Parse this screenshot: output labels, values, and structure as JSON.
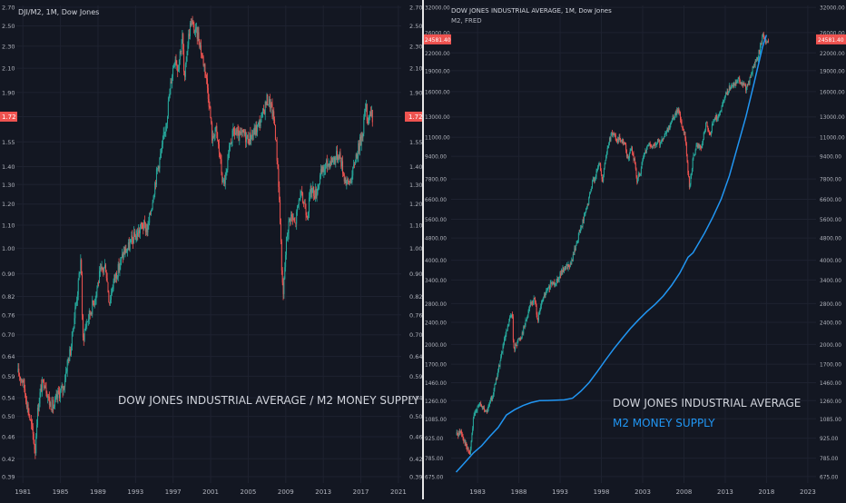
{
  "colors": {
    "background": "#131722",
    "grid": "#1e2230",
    "up": "#26a69a",
    "down": "#ef5350",
    "m2_line": "#2196f3",
    "text": "#b2b5be",
    "price_tag": "#ef5350"
  },
  "chart_data": [
    {
      "type": "candlestick",
      "header": "DJI/M2, 1M, Dow Jones",
      "annotation": "DOW JONES INDUSTRIAL AVERAGE / M2 MONEY SUPPLY",
      "scale": "log",
      "ylim": [
        0.38,
        2.72
      ],
      "y_ticks": [
        "0.39",
        "0.42",
        "0.46",
        "0.50",
        "0.54",
        "0.59",
        "0.64",
        "0.70",
        "0.76",
        "0.82",
        "0.90",
        "1.00",
        "1.10",
        "1.20",
        "1.30",
        "1.40",
        "1.55",
        "1.72",
        "1.90",
        "2.10",
        "2.30",
        "2.50",
        "2.70"
      ],
      "x_ticks": [
        "1981",
        "1985",
        "1989",
        "1993",
        "1997",
        "2001",
        "2005",
        "2009",
        "2013",
        "2017",
        "2021"
      ],
      "xlim": [
        1980.8,
        2021.8
      ],
      "last_value": "1.72",
      "series": [
        {
          "values": [
            [
              1980.9,
              0.6
            ],
            [
              1981.5,
              0.58
            ],
            [
              1982.0,
              0.52
            ],
            [
              1982.6,
              0.46
            ],
            [
              1982.8,
              0.43
            ],
            [
              1983.0,
              0.5
            ],
            [
              1983.4,
              0.56
            ],
            [
              1983.8,
              0.58
            ],
            [
              1984.3,
              0.53
            ],
            [
              1984.8,
              0.52
            ],
            [
              1985.3,
              0.55
            ],
            [
              1985.8,
              0.56
            ],
            [
              1986.2,
              0.62
            ],
            [
              1986.6,
              0.66
            ],
            [
              1987.0,
              0.76
            ],
            [
              1987.4,
              0.86
            ],
            [
              1987.7,
              0.97
            ],
            [
              1987.85,
              0.68
            ],
            [
              1988.2,
              0.73
            ],
            [
              1988.7,
              0.77
            ],
            [
              1989.2,
              0.82
            ],
            [
              1989.7,
              0.9
            ],
            [
              1990.3,
              0.93
            ],
            [
              1990.7,
              0.8
            ],
            [
              1991.2,
              0.88
            ],
            [
              1991.7,
              0.92
            ],
            [
              1992.2,
              0.98
            ],
            [
              1992.7,
              1.0
            ],
            [
              1993.2,
              1.04
            ],
            [
              1993.7,
              1.06
            ],
            [
              1994.2,
              1.1
            ],
            [
              1994.8,
              1.08
            ],
            [
              1995.3,
              1.22
            ],
            [
              1995.8,
              1.38
            ],
            [
              1996.3,
              1.5
            ],
            [
              1996.8,
              1.7
            ],
            [
              1997.3,
              2.0
            ],
            [
              1997.7,
              2.22
            ],
            [
              1998.0,
              2.1
            ],
            [
              1998.5,
              2.4
            ],
            [
              1998.7,
              1.95
            ],
            [
              1999.0,
              2.3
            ],
            [
              1999.4,
              2.55
            ],
            [
              1999.8,
              2.45
            ],
            [
              2000.2,
              2.4
            ],
            [
              2000.6,
              2.2
            ],
            [
              2000.9,
              2.1
            ],
            [
              2001.3,
              1.85
            ],
            [
              2001.7,
              1.55
            ],
            [
              2002.0,
              1.65
            ],
            [
              2002.5,
              1.45
            ],
            [
              2002.8,
              1.3
            ],
            [
              2003.2,
              1.35
            ],
            [
              2003.6,
              1.55
            ],
            [
              2004.0,
              1.62
            ],
            [
              2004.5,
              1.58
            ],
            [
              2005.0,
              1.6
            ],
            [
              2005.5,
              1.57
            ],
            [
              2006.0,
              1.6
            ],
            [
              2006.5,
              1.65
            ],
            [
              2007.0,
              1.72
            ],
            [
              2007.5,
              1.85
            ],
            [
              2007.9,
              1.8
            ],
            [
              2008.3,
              1.68
            ],
            [
              2008.7,
              1.35
            ],
            [
              2009.0,
              1.0
            ],
            [
              2009.2,
              0.8
            ],
            [
              2009.6,
              1.05
            ],
            [
              2010.0,
              1.15
            ],
            [
              2010.5,
              1.1
            ],
            [
              2011.0,
              1.25
            ],
            [
              2011.5,
              1.2
            ],
            [
              2011.8,
              1.15
            ],
            [
              2012.2,
              1.28
            ],
            [
              2012.7,
              1.25
            ],
            [
              2013.2,
              1.35
            ],
            [
              2013.7,
              1.4
            ],
            [
              2014.2,
              1.43
            ],
            [
              2014.7,
              1.45
            ],
            [
              2015.2,
              1.48
            ],
            [
              2015.7,
              1.35
            ],
            [
              2016.1,
              1.3
            ],
            [
              2016.6,
              1.35
            ],
            [
              2016.9,
              1.45
            ],
            [
              2017.3,
              1.52
            ],
            [
              2017.7,
              1.62
            ],
            [
              2018.0,
              1.8
            ],
            [
              2018.2,
              1.7
            ],
            [
              2018.5,
              1.75
            ],
            [
              2018.7,
              1.72
            ]
          ]
        }
      ]
    },
    {
      "type": "candlestick+line",
      "header": "DOW JONES INDUSTRIAL AVERAGE, 1M, Dow Jones",
      "subheader": "M2, FRED",
      "legend": [
        "DOW JONES INDUSTRIAL AVERAGE",
        "M2 MONEY SUPPLY"
      ],
      "scale": "log",
      "ylim": [
        640,
        32500
      ],
      "y_ticks": [
        "675.00",
        "785.00",
        "925.00",
        "1085.00",
        "1260.00",
        "1460.00",
        "1700.00",
        "2000.00",
        "2400.00",
        "2800.00",
        "3400.00",
        "4000.00",
        "4800.00",
        "5600.00",
        "6600.00",
        "7800.00",
        "9400.00",
        "11000.00",
        "13000.00",
        "16000.00",
        "19000.00",
        "22000.00",
        "26000.00",
        "32000.00"
      ],
      "x_ticks": [
        "1983",
        "1988",
        "1993",
        "1998",
        "2003",
        "2008",
        "2013",
        "2018",
        "2023"
      ],
      "xlim": [
        1980.3,
        2024.5
      ],
      "last_value": "24581.40",
      "series": [
        {
          "name": "DOW JONES INDUSTRIAL AVERAGE",
          "values": [
            [
              1980.9,
              950
            ],
            [
              1981.5,
              980
            ],
            [
              1982.2,
              850
            ],
            [
              1982.6,
              810
            ],
            [
              1983.0,
              1080
            ],
            [
              1983.5,
              1220
            ],
            [
              1984.0,
              1200
            ],
            [
              1984.6,
              1150
            ],
            [
              1985.2,
              1280
            ],
            [
              1985.8,
              1500
            ],
            [
              1986.4,
              1850
            ],
            [
              1987.0,
              2200
            ],
            [
              1987.7,
              2650
            ],
            [
              1987.85,
              1900
            ],
            [
              1988.3,
              2050
            ],
            [
              1988.8,
              2150
            ],
            [
              1989.3,
              2400
            ],
            [
              1989.8,
              2750
            ],
            [
              1990.4,
              2900
            ],
            [
              1990.8,
              2450
            ],
            [
              1991.4,
              2900
            ],
            [
              1991.9,
              3100
            ],
            [
              1992.5,
              3300
            ],
            [
              1993.0,
              3350
            ],
            [
              1993.6,
              3600
            ],
            [
              1994.2,
              3800
            ],
            [
              1994.8,
              3850
            ],
            [
              1995.4,
              4500
            ],
            [
              1995.9,
              5100
            ],
            [
              1996.5,
              5800
            ],
            [
              1996.9,
              6400
            ],
            [
              1997.4,
              7600
            ],
            [
              1997.8,
              8000
            ],
            [
              1998.3,
              8900
            ],
            [
              1998.6,
              7600
            ],
            [
              1999.0,
              9300
            ],
            [
              1999.5,
              10800
            ],
            [
              1999.9,
              11400
            ],
            [
              2000.4,
              10600
            ],
            [
              2000.8,
              10900
            ],
            [
              2001.3,
              10500
            ],
            [
              2001.7,
              9100
            ],
            [
              2002.1,
              10100
            ],
            [
              2002.6,
              8700
            ],
            [
              2002.8,
              7700
            ],
            [
              2003.2,
              8200
            ],
            [
              2003.7,
              9500
            ],
            [
              2004.2,
              10400
            ],
            [
              2004.7,
              10000
            ],
            [
              2005.2,
              10600
            ],
            [
              2005.7,
              10500
            ],
            [
              2006.3,
              11200
            ],
            [
              2006.8,
              12200
            ],
            [
              2007.3,
              13200
            ],
            [
              2007.8,
              13800
            ],
            [
              2008.2,
              12300
            ],
            [
              2008.6,
              11400
            ],
            [
              2008.9,
              8800
            ],
            [
              2009.2,
              7200
            ],
            [
              2009.6,
              9300
            ],
            [
              2010.1,
              10300
            ],
            [
              2010.6,
              10000
            ],
            [
              2011.2,
              12300
            ],
            [
              2011.7,
              11300
            ],
            [
              2012.2,
              12900
            ],
            [
              2012.8,
              13100
            ],
            [
              2013.3,
              14800
            ],
            [
              2013.9,
              16300
            ],
            [
              2014.5,
              16900
            ],
            [
              2015.0,
              17800
            ],
            [
              2015.6,
              17000
            ],
            [
              2016.1,
              16400
            ],
            [
              2016.6,
              18200
            ],
            [
              2016.9,
              19700
            ],
            [
              2017.4,
              21000
            ],
            [
              2017.9,
              24000
            ],
            [
              2018.1,
              26000
            ],
            [
              2018.3,
              24200
            ],
            [
              2018.7,
              24581
            ]
          ]
        },
        {
          "name": "M2 MONEY SUPPLY",
          "values": [
            [
              1980.9,
              700
            ],
            [
              1982.0,
              760
            ],
            [
              1983.0,
              820
            ],
            [
              1984.0,
              870
            ],
            [
              1985.0,
              940
            ],
            [
              1986.0,
              1010
            ],
            [
              1987.0,
              1120
            ],
            [
              1988.0,
              1170
            ],
            [
              1989.0,
              1210
            ],
            [
              1990.0,
              1240
            ],
            [
              1991.0,
              1260
            ],
            [
              1992.0,
              1262
            ],
            [
              1993.0,
              1265
            ],
            [
              1994.0,
              1268
            ],
            [
              1995.0,
              1285
            ],
            [
              1996.0,
              1360
            ],
            [
              1997.0,
              1460
            ],
            [
              1998.0,
              1600
            ],
            [
              1999.0,
              1760
            ],
            [
              2000.0,
              1930
            ],
            [
              2001.0,
              2100
            ],
            [
              2002.0,
              2280
            ],
            [
              2003.0,
              2450
            ],
            [
              2004.0,
              2620
            ],
            [
              2005.0,
              2780
            ],
            [
              2006.0,
              2980
            ],
            [
              2007.0,
              3250
            ],
            [
              2008.0,
              3600
            ],
            [
              2009.0,
              4100
            ],
            [
              2009.6,
              4250
            ],
            [
              2010.0,
              4450
            ],
            [
              2011.0,
              5000
            ],
            [
              2012.0,
              5700
            ],
            [
              2013.0,
              6600
            ],
            [
              2014.0,
              8000
            ],
            [
              2015.0,
              10200
            ],
            [
              2016.0,
              13000
            ],
            [
              2017.0,
              17200
            ],
            [
              2018.0,
              23000
            ],
            [
              2018.5,
              25500
            ]
          ]
        }
      ]
    }
  ]
}
